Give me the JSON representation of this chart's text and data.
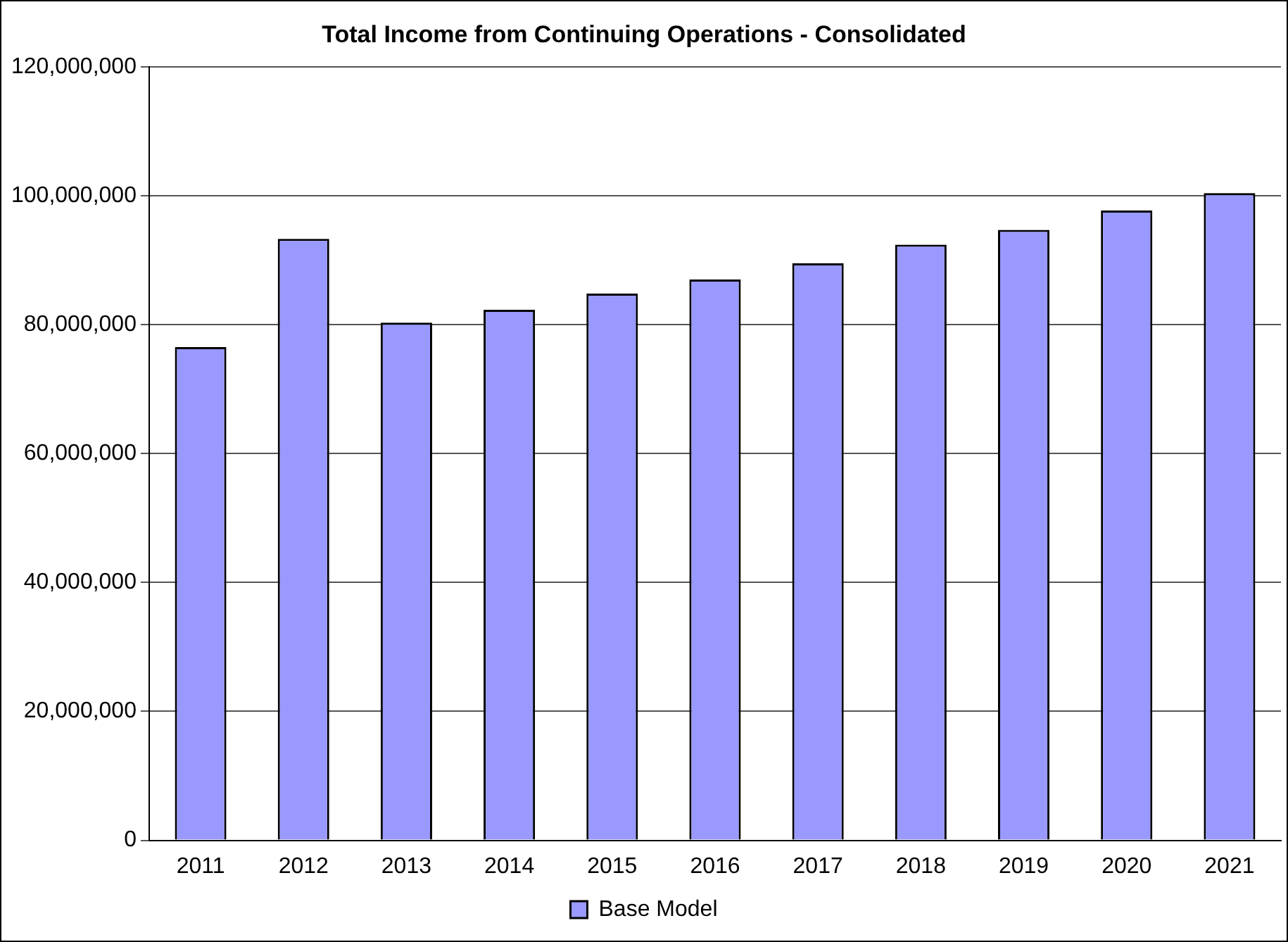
{
  "chart_data": {
    "type": "bar",
    "title": "Total Income from Continuing Operations - Consolidated",
    "categories": [
      "2011",
      "2012",
      "2013",
      "2014",
      "2015",
      "2016",
      "2017",
      "2018",
      "2019",
      "2020",
      "2021"
    ],
    "series": [
      {
        "name": "Base Model",
        "color": "#9999ff",
        "values": [
          76500000,
          93300000,
          80300000,
          82300000,
          84800000,
          87000000,
          89500000,
          92400000,
          94700000,
          97700000,
          100400000
        ]
      }
    ],
    "ylim": [
      0,
      120000000
    ],
    "yticks": [
      0,
      {
        "value": 20000000,
        "label": "20,000,000"
      },
      {
        "value": 40000000,
        "label": "40,000,000"
      },
      {
        "value": 60000000,
        "label": "60,000,000"
      },
      {
        "value": 80000000,
        "label": "80,000,000"
      },
      {
        "value": 100000000,
        "label": "100,000,000"
      },
      {
        "value": 120000000,
        "label": "120,000,000"
      }
    ],
    "grid": "y",
    "legend": "bottom"
  }
}
